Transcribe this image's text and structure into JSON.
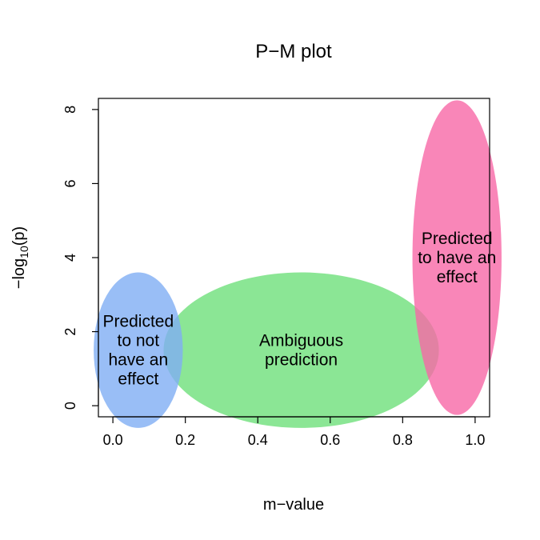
{
  "chart_data": {
    "type": "scatter",
    "title": "P−M plot",
    "xlabel": "m−value",
    "ylabel_prefix": "−log",
    "ylabel_subscript": "10",
    "ylabel_suffix": "(p)",
    "xlim": [
      -0.04,
      1.04
    ],
    "ylim": [
      -0.3,
      8.3
    ],
    "x_ticks": [
      0.0,
      0.2,
      0.4,
      0.6,
      0.8,
      1.0
    ],
    "x_tick_labels": [
      "0.0",
      "0.2",
      "0.4",
      "0.6",
      "0.8",
      "1.0"
    ],
    "y_ticks": [
      0,
      2,
      4,
      6,
      8
    ],
    "y_tick_labels": [
      "0",
      "2",
      "4",
      "6",
      "8"
    ],
    "grid": false,
    "legend": "none",
    "regions": [
      {
        "label": "Ambiguous prediction",
        "lines": [
          "Ambiguous",
          "prediction"
        ],
        "center": [
          0.52,
          1.5
        ],
        "x_radius": 0.38,
        "y_radius": 2.1,
        "color": "#6EE07A",
        "opacity": 0.8
      },
      {
        "label": "Predicted to not have an effect",
        "lines": [
          "Predicted",
          "to not",
          "have an",
          "effect"
        ],
        "center": [
          0.07,
          1.5
        ],
        "x_radius": 0.123,
        "y_radius": 2.1,
        "color": "#7FAEF4",
        "opacity": 0.8
      },
      {
        "label": "Predicted to have an effect",
        "lines": [
          "Predicted",
          "to have an",
          "effect"
        ],
        "center": [
          0.95,
          4.0
        ],
        "x_radius": 0.123,
        "y_radius": 4.25,
        "color": "#F768A6",
        "opacity": 0.8
      }
    ]
  }
}
